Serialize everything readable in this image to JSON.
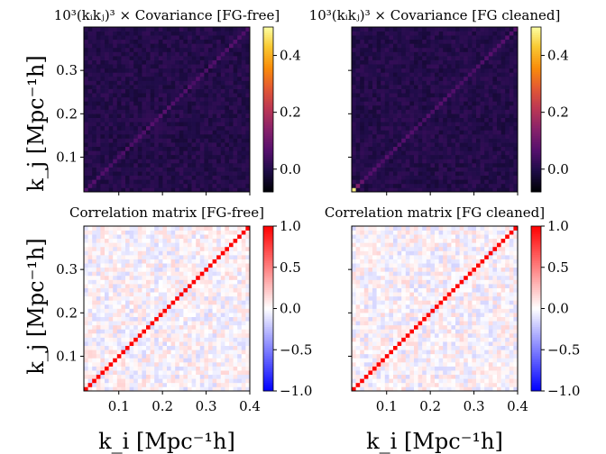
{
  "figure": {
    "ylabel": "k_j [Mpc⁻¹h]",
    "xlabel": "k_i [Mpc⁻¹h]"
  },
  "chart_data": [
    {
      "type": "heatmap",
      "title": "10³(kᵢkⱼ)³ × Covariance [FG-free]",
      "colormap": "inferno",
      "n_bins": 40,
      "k_range": [
        0.02,
        0.4
      ],
      "color_range": [
        -0.08,
        0.5
      ],
      "colorbar_ticks": [
        0.0,
        0.2,
        0.4
      ],
      "colorbar_tick_labels": [
        "0.0",
        "0.2",
        "0.4"
      ],
      "diagonal_level": 0.06,
      "off_diagonal_level": 0.0,
      "special_cells": [],
      "xticks": [
        0.1,
        0.2,
        0.3,
        0.4
      ],
      "yticks": [
        0.1,
        0.2,
        0.3
      ],
      "ytick_labels": [
        "0.1",
        "0.2",
        "0.3"
      ],
      "xtick_labels_shown": false,
      "ytick_labels_shown": true
    },
    {
      "type": "heatmap",
      "title": "10³(kᵢkⱼ)³ × Covariance [FG cleaned]",
      "colormap": "inferno",
      "n_bins": 40,
      "k_range": [
        0.02,
        0.4
      ],
      "color_range": [
        -0.08,
        0.5
      ],
      "colorbar_ticks": [
        0.0,
        0.2,
        0.4
      ],
      "colorbar_tick_labels": [
        "0.0",
        "0.2",
        "0.4"
      ],
      "diagonal_level": 0.06,
      "off_diagonal_level": 0.0,
      "special_cells": [
        {
          "i": 0,
          "j": 0,
          "value": 0.48
        },
        {
          "i": 1,
          "j": 1,
          "value": 0.13
        },
        {
          "i": 2,
          "j": 2,
          "value": 0.09
        }
      ],
      "xticks": [
        0.1,
        0.2,
        0.3,
        0.4
      ],
      "yticks": [
        0.1,
        0.2,
        0.3
      ],
      "xtick_labels_shown": false,
      "ytick_labels_shown": false
    },
    {
      "type": "heatmap",
      "title": "Correlation matrix [FG-free]",
      "colormap": "bwr",
      "n_bins": 40,
      "k_range": [
        0.02,
        0.4
      ],
      "color_range": [
        -1.0,
        1.0
      ],
      "colorbar_ticks": [
        1.0,
        0.5,
        0.0,
        -0.5,
        -1.0
      ],
      "colorbar_tick_labels": [
        "1.0",
        "0.5",
        "0.0",
        "−0.5",
        "−1.0"
      ],
      "diagonal_level": 1.0,
      "off_diagonal_level": 0.0,
      "special_cells": [],
      "xticks": [
        0.1,
        0.2,
        0.3,
        0.4
      ],
      "xtick_labels": [
        "0.1",
        "0.2",
        "0.3",
        "0.4"
      ],
      "yticks": [
        0.1,
        0.2,
        0.3
      ],
      "ytick_labels": [
        "0.1",
        "0.2",
        "0.3"
      ],
      "xtick_labels_shown": true,
      "ytick_labels_shown": true
    },
    {
      "type": "heatmap",
      "title": "Correlation matrix [FG cleaned]",
      "colormap": "bwr",
      "n_bins": 40,
      "k_range": [
        0.02,
        0.4
      ],
      "color_range": [
        -1.0,
        1.0
      ],
      "colorbar_ticks": [
        1.0,
        0.5,
        0.0,
        -0.5,
        -1.0
      ],
      "colorbar_tick_labels": [
        "1.0",
        "0.5",
        "0.0",
        "−0.5",
        "−1.0"
      ],
      "diagonal_level": 1.0,
      "off_diagonal_level": 0.0,
      "special_cells": [],
      "xticks": [
        0.1,
        0.2,
        0.3,
        0.4
      ],
      "xtick_labels": [
        "0.1",
        "0.2",
        "0.3",
        "0.4"
      ],
      "yticks": [
        0.1,
        0.2,
        0.3
      ],
      "xtick_labels_shown": true,
      "ytick_labels_shown": false
    }
  ]
}
